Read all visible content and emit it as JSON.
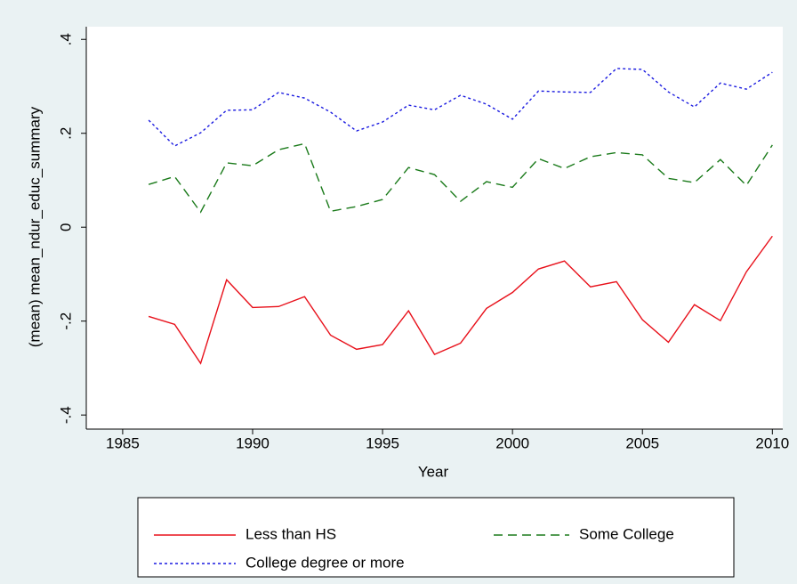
{
  "chart_data": {
    "type": "line",
    "x_label": "Year",
    "y_label": "(mean) mean_ndur_educ_summary",
    "x": [
      1986,
      1987,
      1988,
      1989,
      1990,
      1991,
      1992,
      1993,
      1994,
      1995,
      1996,
      1997,
      1998,
      1999,
      2000,
      2001,
      2002,
      2003,
      2004,
      2005,
      2006,
      2007,
      2008,
      2009,
      2010
    ],
    "series": [
      {
        "name": "Less than HS",
        "color": "#e8101a",
        "style": "solid",
        "values": [
          -0.19,
          -0.207,
          -0.29,
          -0.112,
          -0.171,
          -0.169,
          -0.148,
          -0.23,
          -0.26,
          -0.25,
          -0.178,
          -0.271,
          -0.247,
          -0.173,
          -0.139,
          -0.089,
          -0.072,
          -0.127,
          -0.116,
          -0.197,
          -0.245,
          -0.165,
          -0.199,
          -0.095,
          -0.019
        ]
      },
      {
        "name": "Some College",
        "color": "#1a7a1a",
        "style": "dashed",
        "values": [
          0.091,
          0.108,
          0.032,
          0.137,
          0.131,
          0.165,
          0.178,
          0.034,
          0.044,
          0.059,
          0.127,
          0.112,
          0.055,
          0.097,
          0.085,
          0.146,
          0.125,
          0.15,
          0.159,
          0.154,
          0.104,
          0.095,
          0.144,
          0.089,
          0.175
        ]
      },
      {
        "name": "College degree or more",
        "color": "#1a1ae0",
        "style": "dotted",
        "values": [
          0.228,
          0.173,
          0.201,
          0.249,
          0.25,
          0.287,
          0.275,
          0.245,
          0.205,
          0.224,
          0.26,
          0.25,
          0.281,
          0.262,
          0.23,
          0.29,
          0.288,
          0.287,
          0.338,
          0.336,
          0.288,
          0.256,
          0.307,
          0.294,
          0.33
        ]
      }
    ],
    "xlim": [
      1983.6,
      2010.4
    ],
    "ylim": [
      -0.43,
      0.427
    ],
    "xticks": [
      1985,
      1990,
      1995,
      2000,
      2005,
      2010
    ],
    "yticks": [
      {
        "value": -0.4,
        "label": "-.4"
      },
      {
        "value": -0.2,
        "label": "-.2"
      },
      0,
      {
        "value": 0.2,
        "label": ".2"
      },
      {
        "value": 0.4,
        "label": ".4"
      }
    ],
    "grid": false,
    "legend": "bottom"
  }
}
